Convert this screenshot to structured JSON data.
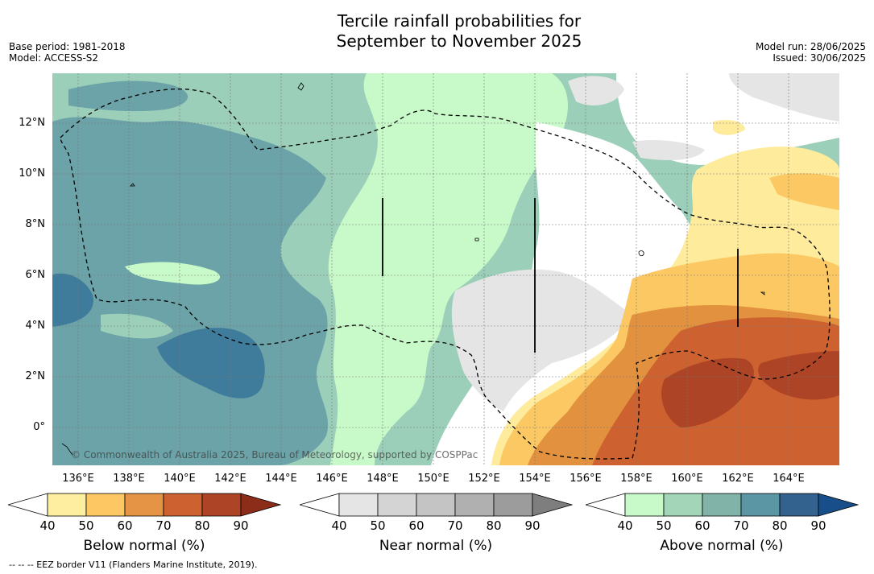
{
  "title_line1": "Tercile rainfall probabilities for",
  "title_line2": "September to November 2025",
  "meta": {
    "base_period": "Base period: 1981-2018",
    "model": "Model: ACCESS-S2",
    "model_run": "Model run: 28/06/2025",
    "issued": "Issued: 30/06/2025"
  },
  "map": {
    "lon_labels": [
      "136°E",
      "138°E",
      "140°E",
      "142°E",
      "144°E",
      "146°E",
      "148°E",
      "150°E",
      "152°E",
      "154°E",
      "156°E",
      "158°E",
      "160°E",
      "162°E",
      "164°E"
    ],
    "lat_labels": [
      "12°N",
      "10°N",
      "8°N",
      "6°N",
      "4°N",
      "2°N",
      "0°"
    ],
    "copyright": "© Commonwealth of Australia 2025, Bureau of Meteorology, supported by COSPPac"
  },
  "colorbars": [
    {
      "label": "Below normal (%)",
      "ticks": [
        "40",
        "50",
        "60",
        "70",
        "80",
        "90"
      ],
      "colors": [
        "#ffffff",
        "#fdeea0",
        "#fdc863",
        "#e49444",
        "#cd6230",
        "#ad4426",
        "#8c2d1a"
      ]
    },
    {
      "label": "Near normal (%)",
      "ticks": [
        "40",
        "50",
        "60",
        "70",
        "80",
        "90"
      ],
      "colors": [
        "#ffffff",
        "#e5e5e5",
        "#d4d4d4",
        "#c4c4c4",
        "#b0b0b0",
        "#9c9c9c",
        "#7e7e7e"
      ]
    },
    {
      "label": "Above normal (%)",
      "ticks": [
        "40",
        "50",
        "60",
        "70",
        "80",
        "90"
      ],
      "colors": [
        "#ffffff",
        "#c8f9c8",
        "#a3d5b8",
        "#82b3a8",
        "#5b96a4",
        "#33628f",
        "#184f8a"
      ]
    }
  ],
  "footnote": "-- -- -- EEZ border V11 (Flanders Marine Institute, 2019).",
  "colors": {
    "above_50": "#c8f9c8",
    "above_60": "#9ccfb9",
    "above_70": "#6ba3a8",
    "above_80": "#3f7b9b",
    "near_40": "#e5e5e5",
    "below_50": "#feeb9b",
    "below_60": "#fbc863",
    "below_70": "#e2913f",
    "below_80": "#cd6230",
    "below_90": "#ad4426"
  }
}
